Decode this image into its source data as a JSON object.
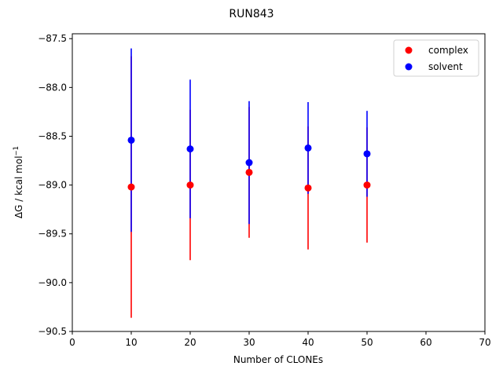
{
  "chart_data": {
    "type": "scatter",
    "title": "RUN843",
    "xlabel": "Number of CLONEs",
    "ylabel_main": "ΔG / kcal mol",
    "ylabel_sup": "−1",
    "xlim": [
      0,
      70
    ],
    "ylim": [
      -90.5,
      -87.45
    ],
    "x_ticks": [
      0,
      10,
      20,
      30,
      40,
      50,
      60,
      70
    ],
    "x_tick_labels": [
      "0",
      "10",
      "20",
      "30",
      "40",
      "50",
      "60",
      "70"
    ],
    "y_ticks": [
      -90.5,
      -90.0,
      -89.5,
      -89.0,
      -88.5,
      -88.0,
      -87.5
    ],
    "y_tick_labels": [
      "−90.5",
      "−90.0",
      "−89.5",
      "−89.0",
      "−88.5",
      "−88.0",
      "−87.5"
    ],
    "grid": false,
    "legend_position": "top-right",
    "series": [
      {
        "name": "complex",
        "color": "#ff0000",
        "x": [
          10,
          20,
          30,
          40,
          50
        ],
        "y": [
          -89.02,
          -89.0,
          -88.87,
          -89.03,
          -89.0
        ],
        "err": [
          1.34,
          0.77,
          0.67,
          0.63,
          0.59
        ]
      },
      {
        "name": "solvent",
        "color": "#0000ff",
        "x": [
          10,
          20,
          30,
          40,
          50
        ],
        "y": [
          -88.54,
          -88.63,
          -88.77,
          -88.62,
          -88.68
        ],
        "err": [
          0.94,
          0.71,
          0.63,
          0.47,
          0.44
        ]
      }
    ]
  }
}
